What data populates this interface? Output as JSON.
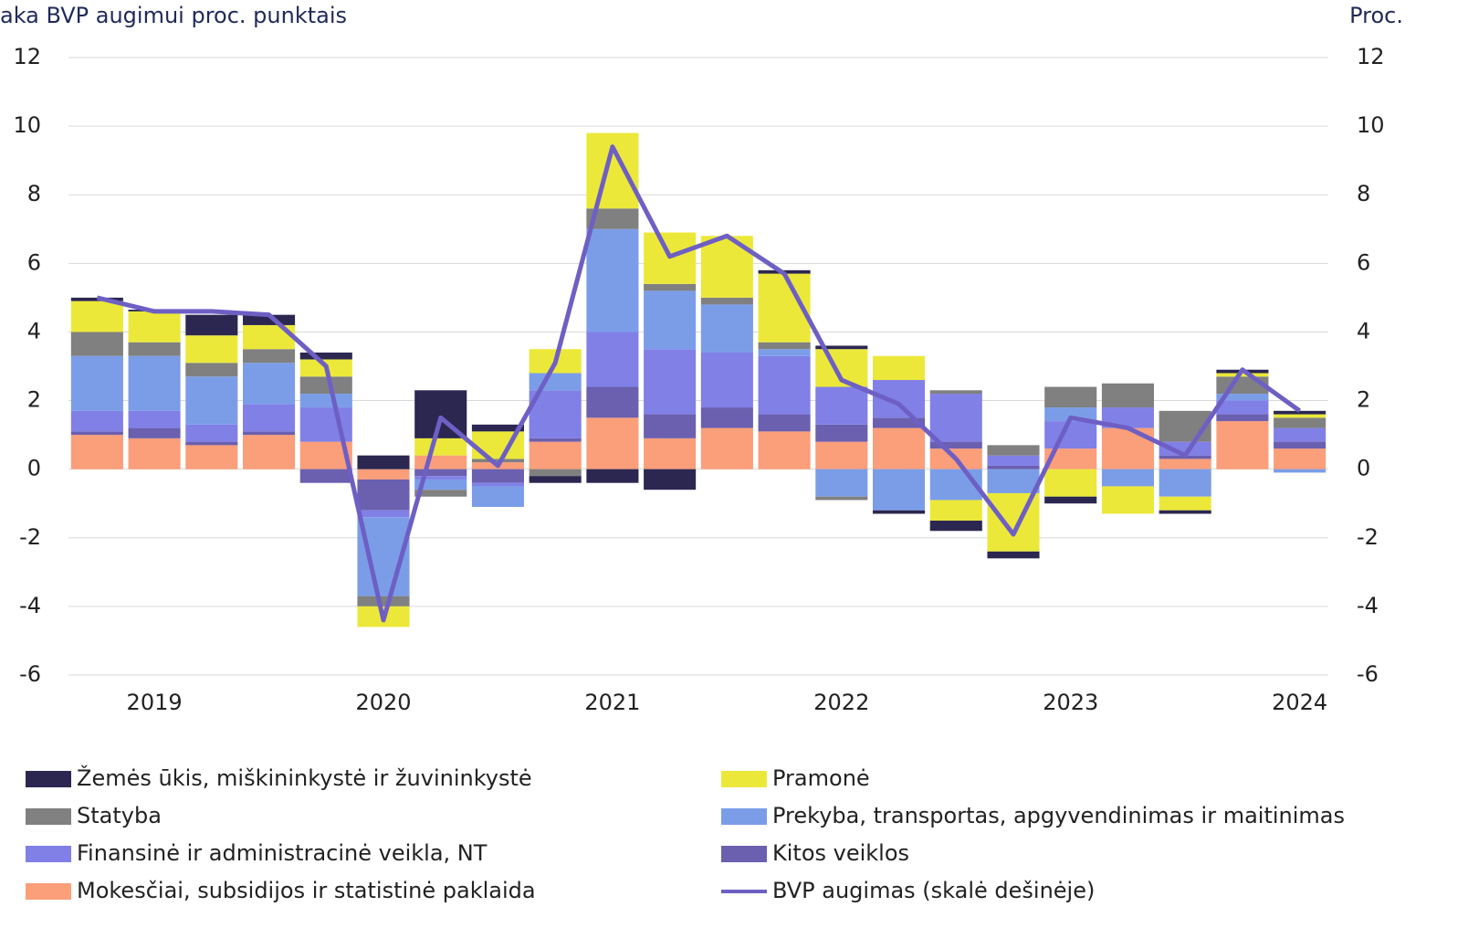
{
  "chart_data": {
    "type": "bar",
    "stacked": true,
    "y_label": "aka BVP augimui proc. punktais",
    "y2_label": "Proc.",
    "categories": [
      null,
      "2019",
      null,
      null,
      null,
      "2020",
      null,
      null,
      null,
      "2021",
      null,
      null,
      null,
      "2022",
      null,
      null,
      null,
      "2023",
      null,
      null,
      null,
      "2024"
    ],
    "ylim": [
      -6,
      12
    ],
    "yticks": [
      -6,
      -4,
      -2,
      0,
      2,
      4,
      6,
      8,
      10,
      12
    ],
    "y2lim": [
      -6,
      12
    ],
    "y2ticks": [
      -6,
      -4,
      -2,
      0,
      2,
      4,
      6,
      8,
      10,
      12
    ],
    "grid": true,
    "series": [
      {
        "name": "Žemės ūkis, miškininkystė ir žuvininkystė",
        "color": "#2b2750",
        "values": [
          0.1,
          0.05,
          0.6,
          0.3,
          0.2,
          0.4,
          1.4,
          0.2,
          -0.2,
          -0.4,
          -0.6,
          0,
          0.1,
          0.1,
          -0.1,
          -0.3,
          -0.2,
          -0.2,
          0,
          -0.1,
          0.1,
          0.1
        ]
      },
      {
        "name": "Pramonė",
        "color": "#ece83a",
        "values": [
          0.9,
          0.9,
          0.8,
          0.7,
          0.5,
          -0.6,
          0.5,
          0.8,
          0.7,
          2.2,
          1.5,
          1.8,
          2.0,
          1.1,
          0.7,
          -0.6,
          -1.7,
          -0.8,
          -0.8,
          -0.4,
          0.1,
          0.1
        ]
      },
      {
        "name": "Statyba",
        "color": "#808080",
        "values": [
          0.7,
          0.4,
          0.4,
          0.4,
          0.5,
          -0.3,
          -0.2,
          0.1,
          -0.2,
          0.6,
          0.2,
          0.2,
          0.2,
          -0.1,
          0,
          0.1,
          0.3,
          0.6,
          0.7,
          0.9,
          0.5,
          0.3
        ]
      },
      {
        "name": "Prekyba, transportas, apgyvendinimas ir maitinimas",
        "color": "#7b9de8",
        "values": [
          1.6,
          1.6,
          1.4,
          1.2,
          0.4,
          -2.3,
          -0.3,
          -0.6,
          0.5,
          3.0,
          1.7,
          1.4,
          0.2,
          -0.8,
          -1.2,
          -0.9,
          -0.7,
          0.4,
          -0.5,
          -0.8,
          0.2,
          -0.1
        ]
      },
      {
        "name": "Finansinė ir administracinė veikla, NT",
        "color": "#8080e6",
        "values": [
          0.6,
          0.5,
          0.5,
          0.8,
          1.0,
          -0.2,
          -0.1,
          -0.1,
          1.4,
          1.6,
          1.9,
          1.6,
          1.7,
          1.1,
          1.1,
          1.4,
          0.3,
          0.8,
          0.6,
          0.4,
          0.4,
          0.4
        ]
      },
      {
        "name": "Kitos veiklos",
        "color": "#6b5fb0",
        "values": [
          0.1,
          0.3,
          0.1,
          0.1,
          -0.4,
          -0.9,
          -0.2,
          -0.4,
          0.1,
          0.9,
          0.7,
          0.6,
          0.5,
          0.5,
          0.3,
          0.2,
          0.1,
          0,
          0,
          0.1,
          0.2,
          0.2
        ]
      },
      {
        "name": "Mokesčiai, subsidijos ir statistinė paklaida",
        "color": "#fb9e7a",
        "values": [
          1.0,
          0.9,
          0.7,
          1.0,
          0.8,
          -0.3,
          0.4,
          0.2,
          0.8,
          1.5,
          0.9,
          1.2,
          1.1,
          0.8,
          1.2,
          0.6,
          0,
          0.6,
          1.2,
          0.3,
          1.4,
          0.6
        ]
      },
      {
        "name": "BVP augimas (skalė dešinėje)",
        "color": "#6e5fc4",
        "type": "line",
        "axis": "y2",
        "values": [
          5.0,
          4.6,
          4.6,
          4.5,
          3.0,
          -4.4,
          1.5,
          0.1,
          3.1,
          9.4,
          6.2,
          6.8,
          5.7,
          2.6,
          1.9,
          0.3,
          -1.9,
          1.5,
          1.2,
          0.4,
          2.9,
          1.7
        ]
      }
    ]
  }
}
